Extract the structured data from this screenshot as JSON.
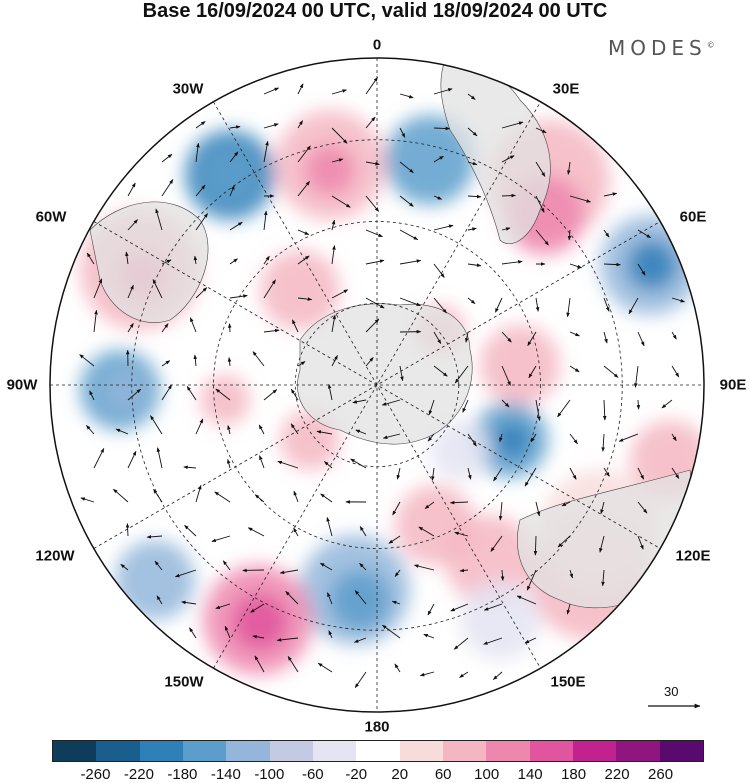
{
  "header": {
    "title": "Base 16/09/2024 00 UTC, valid 18/09/2024 00 UTC",
    "brand": "MODES",
    "brand_mark": "©"
  },
  "map": {
    "projection": "south-polar-stereographic",
    "longitude_labels": {
      "top": "0",
      "bottom": "180",
      "left": "90W",
      "right": "90E",
      "upper_left": "30W",
      "upper_right": "30E",
      "mid_left": "60W",
      "mid_right": "60E",
      "lower_left": "120W",
      "lower_right": "120E",
      "bottom_left": "150W",
      "bottom_right": "150E"
    },
    "reference_vector_label": "30",
    "colors": {
      "land": "#e2e2e2",
      "coast": "#444444",
      "graticule": "#222222"
    }
  },
  "colorbar": {
    "colors": [
      "#0e3d5c",
      "#1a5e8e",
      "#2f7fb8",
      "#5c9dcb",
      "#93b6da",
      "#c3cbe4",
      "#e4e4f2",
      "#ffffff",
      "#f8dcdc",
      "#f4b6c2",
      "#ee87ae",
      "#e0559e",
      "#c2228f",
      "#911580",
      "#5a0a6e"
    ],
    "tick_labels": [
      "-260",
      "-220",
      "-180",
      "-140",
      "-100",
      "-60",
      "-20",
      "20",
      "60",
      "100",
      "140",
      "180",
      "220",
      "260"
    ]
  }
}
